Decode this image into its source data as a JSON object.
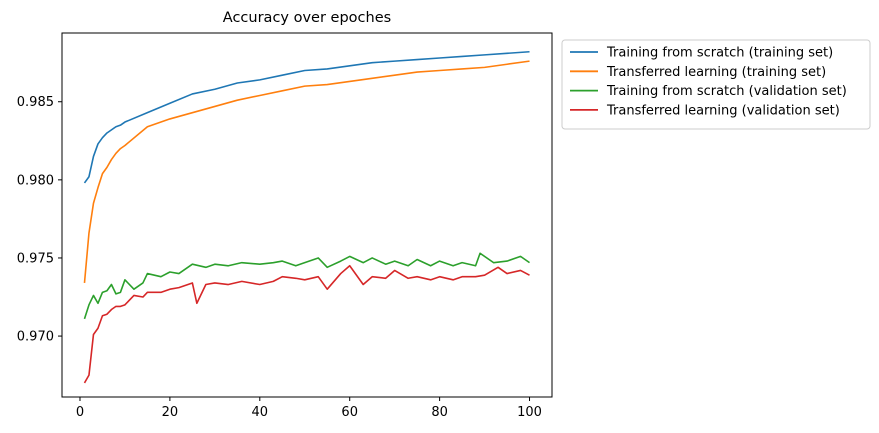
{
  "chart_data": {
    "type": "line",
    "title": "Accuracy over epoches",
    "xlabel": "",
    "ylabel": "",
    "xlim": [
      -4,
      105
    ],
    "ylim": [
      0.9661,
      0.9894
    ],
    "x_ticks": [
      0,
      20,
      40,
      60,
      80,
      100
    ],
    "x_tick_labels": [
      "0",
      "20",
      "40",
      "60",
      "80",
      "100"
    ],
    "y_ticks": [
      0.97,
      0.975,
      0.98,
      0.985
    ],
    "y_tick_labels": [
      "0.970",
      "0.975",
      "0.980",
      "0.985"
    ],
    "grid": false,
    "legend_placement": "outside upper right",
    "series": [
      {
        "name": "Training from scratch (training set)",
        "color": "#1f77b4",
        "x": [
          1,
          2,
          3,
          4,
          5,
          6,
          7,
          8,
          9,
          10,
          15,
          20,
          25,
          30,
          35,
          40,
          45,
          50,
          55,
          60,
          65,
          70,
          75,
          80,
          85,
          90,
          95,
          100
        ],
        "values": [
          0.9798,
          0.9802,
          0.9815,
          0.9823,
          0.9827,
          0.983,
          0.9832,
          0.9834,
          0.9835,
          0.9837,
          0.9843,
          0.9849,
          0.9855,
          0.9858,
          0.9862,
          0.9864,
          0.9867,
          0.987,
          0.9871,
          0.9873,
          0.9875,
          0.9876,
          0.9877,
          0.9878,
          0.9879,
          0.988,
          0.9881,
          0.9882
        ]
      },
      {
        "name": "Transferred learning (training set)",
        "color": "#ff7f0e",
        "x": [
          1,
          2,
          3,
          4,
          5,
          6,
          7,
          8,
          9,
          10,
          15,
          20,
          25,
          30,
          35,
          40,
          45,
          50,
          55,
          60,
          65,
          70,
          75,
          80,
          85,
          90,
          95,
          100
        ],
        "values": [
          0.9734,
          0.9766,
          0.9785,
          0.9795,
          0.9804,
          0.9808,
          0.9813,
          0.9817,
          0.982,
          0.9822,
          0.9834,
          0.9839,
          0.9843,
          0.9847,
          0.9851,
          0.9854,
          0.9857,
          0.986,
          0.9861,
          0.9863,
          0.9865,
          0.9867,
          0.9869,
          0.987,
          0.9871,
          0.9872,
          0.9874,
          0.9876
        ]
      },
      {
        "name": "Training from scratch (validation set)",
        "color": "#2ca02c",
        "x": [
          1,
          2,
          3,
          4,
          5,
          6,
          7,
          8,
          9,
          10,
          12,
          14,
          15,
          18,
          20,
          22,
          25,
          28,
          30,
          33,
          36,
          40,
          43,
          45,
          48,
          50,
          53,
          55,
          58,
          60,
          63,
          65,
          68,
          70,
          73,
          75,
          78,
          80,
          83,
          85,
          88,
          89,
          92,
          95,
          98,
          100
        ],
        "values": [
          0.9711,
          0.972,
          0.9726,
          0.9721,
          0.9728,
          0.9729,
          0.9733,
          0.9727,
          0.9728,
          0.9736,
          0.973,
          0.9734,
          0.974,
          0.9738,
          0.9741,
          0.974,
          0.9746,
          0.9744,
          0.9746,
          0.9745,
          0.9747,
          0.9746,
          0.9747,
          0.9748,
          0.9745,
          0.9747,
          0.975,
          0.9744,
          0.9748,
          0.9751,
          0.9747,
          0.975,
          0.9746,
          0.9748,
          0.9745,
          0.9749,
          0.9745,
          0.9748,
          0.9745,
          0.9747,
          0.9745,
          0.9753,
          0.9747,
          0.9748,
          0.9751,
          0.9747
        ]
      },
      {
        "name": "Transferred learning (validation set)",
        "color": "#d62728",
        "x": [
          1,
          2,
          3,
          4,
          5,
          6,
          7,
          8,
          9,
          10,
          12,
          14,
          15,
          18,
          20,
          22,
          25,
          26,
          28,
          30,
          33,
          36,
          40,
          43,
          45,
          48,
          50,
          53,
          55,
          58,
          60,
          63,
          65,
          68,
          70,
          73,
          75,
          78,
          80,
          83,
          85,
          88,
          90,
          93,
          95,
          98,
          100
        ],
        "values": [
          0.967,
          0.9675,
          0.9701,
          0.9705,
          0.9713,
          0.9714,
          0.9717,
          0.9719,
          0.9719,
          0.972,
          0.9726,
          0.9725,
          0.9728,
          0.9728,
          0.973,
          0.9731,
          0.9734,
          0.9721,
          0.9733,
          0.9734,
          0.9733,
          0.9735,
          0.9733,
          0.9735,
          0.9738,
          0.9737,
          0.9736,
          0.9738,
          0.973,
          0.974,
          0.9745,
          0.9733,
          0.9738,
          0.9737,
          0.9742,
          0.9737,
          0.9738,
          0.9736,
          0.9738,
          0.9736,
          0.9738,
          0.9738,
          0.9739,
          0.9744,
          0.974,
          0.9742,
          0.9739
        ]
      }
    ]
  }
}
